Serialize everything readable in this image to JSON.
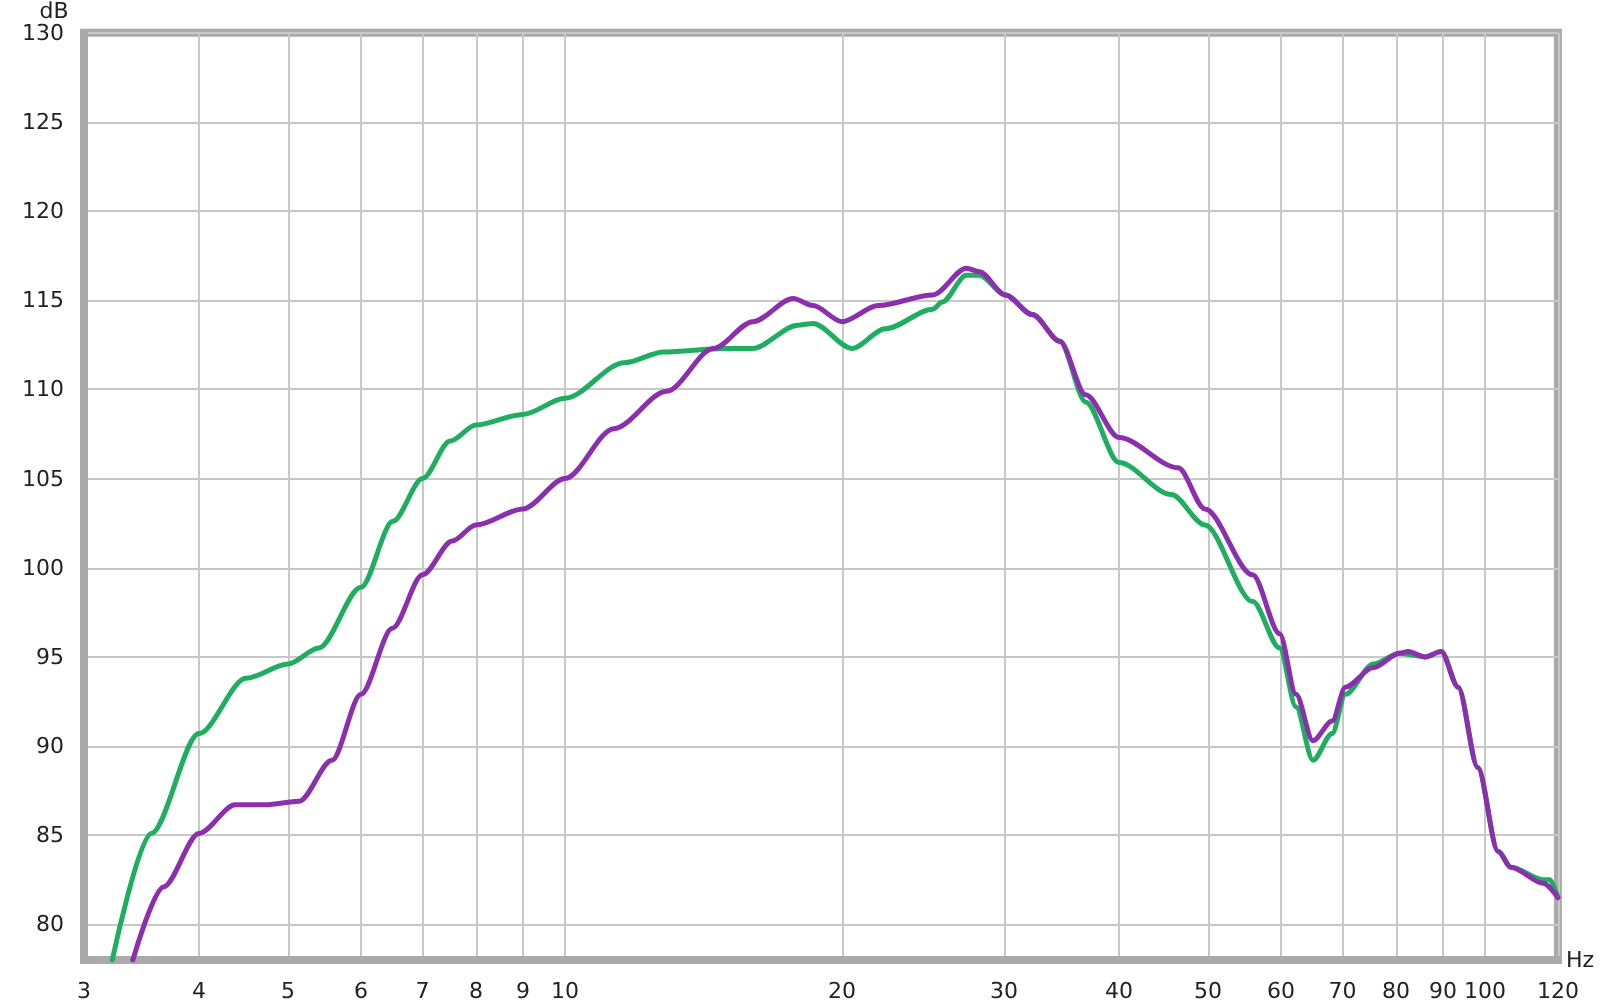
{
  "chart_data": {
    "type": "line",
    "xlabel": "Hz",
    "ylabel": "dB",
    "log": "x",
    "grid": true,
    "marker": "none",
    "line_style": "solid",
    "xlim": [
      3,
      120
    ],
    "xticks": [
      3,
      4,
      5,
      6,
      7,
      8,
      9,
      10,
      20,
      30,
      40,
      50,
      60,
      70,
      80,
      90,
      100,
      120
    ],
    "ylim": [
      78,
      130
    ],
    "yticks": [
      80,
      85,
      90,
      95,
      100,
      105,
      110,
      115,
      120,
      125,
      130
    ],
    "series": [
      {
        "color": "#1fae5f",
        "x": [
          3.22,
          3.55,
          4.0,
          4.5,
          5.0,
          5.4,
          6.0,
          6.5,
          7.0,
          7.5,
          8.0,
          9.0,
          10.0,
          11.6,
          12.8,
          14.9,
          16.0,
          17.9,
          18.6,
          20.5,
          22.3,
          25.1,
          25.7,
          27.3,
          28.2,
          30.1,
          32.2,
          34.5,
          36.8,
          40.0,
          45.6,
          49.6,
          55.9,
          59.8,
          62.3,
          65.0,
          68.2,
          70.5,
          75.6,
          80.7,
          86.1,
          89.6,
          93.5,
          98.2,
          103.3,
          106.7,
          115.7,
          117.6,
          120
        ],
        "values": [
          78,
          85.1,
          90.7,
          93.8,
          94.6,
          95.5,
          98.9,
          102.6,
          105.0,
          107.1,
          108.0,
          108.6,
          109.5,
          111.5,
          112.1,
          112.3,
          112.3,
          113.6,
          113.7,
          112.3,
          113.4,
          114.5,
          114.9,
          116.4,
          116.4,
          115.3,
          114.2,
          112.7,
          109.3,
          105.9,
          104.1,
          102.4,
          98.1,
          95.5,
          92.2,
          89.2,
          90.7,
          92.9,
          94.6,
          95.2,
          95.0,
          95.3,
          93.3,
          88.8,
          84.1,
          83.2,
          82.5,
          82.5,
          81.5
        ]
      },
      {
        "color": "#8b2fae",
        "x": [
          3.39,
          3.66,
          4.0,
          4.38,
          4.73,
          5.14,
          5.58,
          6.0,
          6.49,
          7.0,
          7.54,
          8.0,
          9.0,
          10.0,
          11.3,
          12.9,
          14.5,
          16.0,
          17.7,
          18.6,
          20.0,
          21.9,
          25.1,
          27.3,
          28.2,
          30.1,
          32.2,
          34.5,
          36.8,
          40.0,
          46.4,
          49.6,
          55.9,
          59.8,
          62.3,
          65.0,
          68.2,
          70.5,
          75.6,
          80.7,
          82.5,
          86.1,
          89.6,
          93.5,
          98.2,
          103.3,
          106.7,
          115.7,
          120
        ],
        "values": [
          78,
          82.1,
          85.1,
          86.7,
          86.7,
          86.9,
          89.2,
          92.9,
          96.6,
          99.6,
          101.5,
          102.4,
          103.3,
          105.0,
          107.8,
          109.9,
          112.3,
          113.8,
          115.1,
          114.7,
          113.8,
          114.7,
          115.3,
          116.8,
          116.6,
          115.3,
          114.2,
          112.7,
          109.7,
          107.3,
          105.6,
          103.3,
          99.6,
          96.3,
          92.9,
          90.3,
          91.4,
          93.3,
          94.4,
          95.2,
          95.3,
          95.0,
          95.3,
          93.3,
          88.8,
          84.1,
          83.2,
          82.3,
          81.5
        ]
      }
    ]
  }
}
